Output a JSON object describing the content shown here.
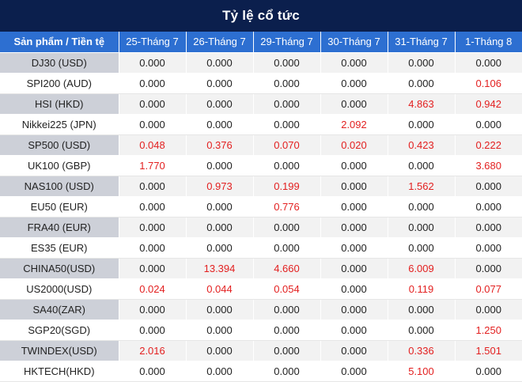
{
  "title": "Tỷ lệ cổ tức",
  "columns": [
    "Sản phẩm / Tiền tệ",
    "25-Tháng 7",
    "26-Tháng 7",
    "29-Tháng 7",
    "30-Tháng 7",
    "31-Tháng 7",
    "1-Tháng 8"
  ],
  "colors": {
    "header_bg": "#0b1f4d",
    "column_header_bg": "#2d6fd1",
    "positive_value": "#e32020",
    "zero_value": "#222222"
  },
  "rows": [
    {
      "product": "DJ30 (USD)",
      "values": [
        "0.000",
        "0.000",
        "0.000",
        "0.000",
        "0.000",
        "0.000"
      ]
    },
    {
      "product": "SPI200 (AUD)",
      "values": [
        "0.000",
        "0.000",
        "0.000",
        "0.000",
        "0.000",
        "0.106"
      ]
    },
    {
      "product": "HSI (HKD)",
      "values": [
        "0.000",
        "0.000",
        "0.000",
        "0.000",
        "4.863",
        "0.942"
      ]
    },
    {
      "product": "Nikkei225 (JPN)",
      "values": [
        "0.000",
        "0.000",
        "0.000",
        "2.092",
        "0.000",
        "0.000"
      ]
    },
    {
      "product": "SP500 (USD)",
      "values": [
        "0.048",
        "0.376",
        "0.070",
        "0.020",
        "0.423",
        "0.222"
      ]
    },
    {
      "product": "UK100 (GBP)",
      "values": [
        "1.770",
        "0.000",
        "0.000",
        "0.000",
        "0.000",
        "3.680"
      ]
    },
    {
      "product": "NAS100 (USD)",
      "values": [
        "0.000",
        "0.973",
        "0.199",
        "0.000",
        "1.562",
        "0.000"
      ]
    },
    {
      "product": "EU50 (EUR)",
      "values": [
        "0.000",
        "0.000",
        "0.776",
        "0.000",
        "0.000",
        "0.000"
      ]
    },
    {
      "product": "FRA40 (EUR)",
      "values": [
        "0.000",
        "0.000",
        "0.000",
        "0.000",
        "0.000",
        "0.000"
      ]
    },
    {
      "product": "ES35 (EUR)",
      "values": [
        "0.000",
        "0.000",
        "0.000",
        "0.000",
        "0.000",
        "0.000"
      ]
    },
    {
      "product": "CHINA50(USD)",
      "values": [
        "0.000",
        "13.394",
        "4.660",
        "0.000",
        "6.009",
        "0.000"
      ]
    },
    {
      "product": "US2000(USD)",
      "values": [
        "0.024",
        "0.044",
        "0.054",
        "0.000",
        "0.119",
        "0.077"
      ]
    },
    {
      "product": "SA40(ZAR)",
      "values": [
        "0.000",
        "0.000",
        "0.000",
        "0.000",
        "0.000",
        "0.000"
      ]
    },
    {
      "product": "SGP20(SGD)",
      "values": [
        "0.000",
        "0.000",
        "0.000",
        "0.000",
        "0.000",
        "1.250"
      ]
    },
    {
      "product": "TWINDEX(USD)",
      "values": [
        "2.016",
        "0.000",
        "0.000",
        "0.000",
        "0.336",
        "1.501"
      ]
    },
    {
      "product": "HKTECH(HKD)",
      "values": [
        "0.000",
        "0.000",
        "0.000",
        "0.000",
        "5.100",
        "0.000"
      ]
    }
  ]
}
